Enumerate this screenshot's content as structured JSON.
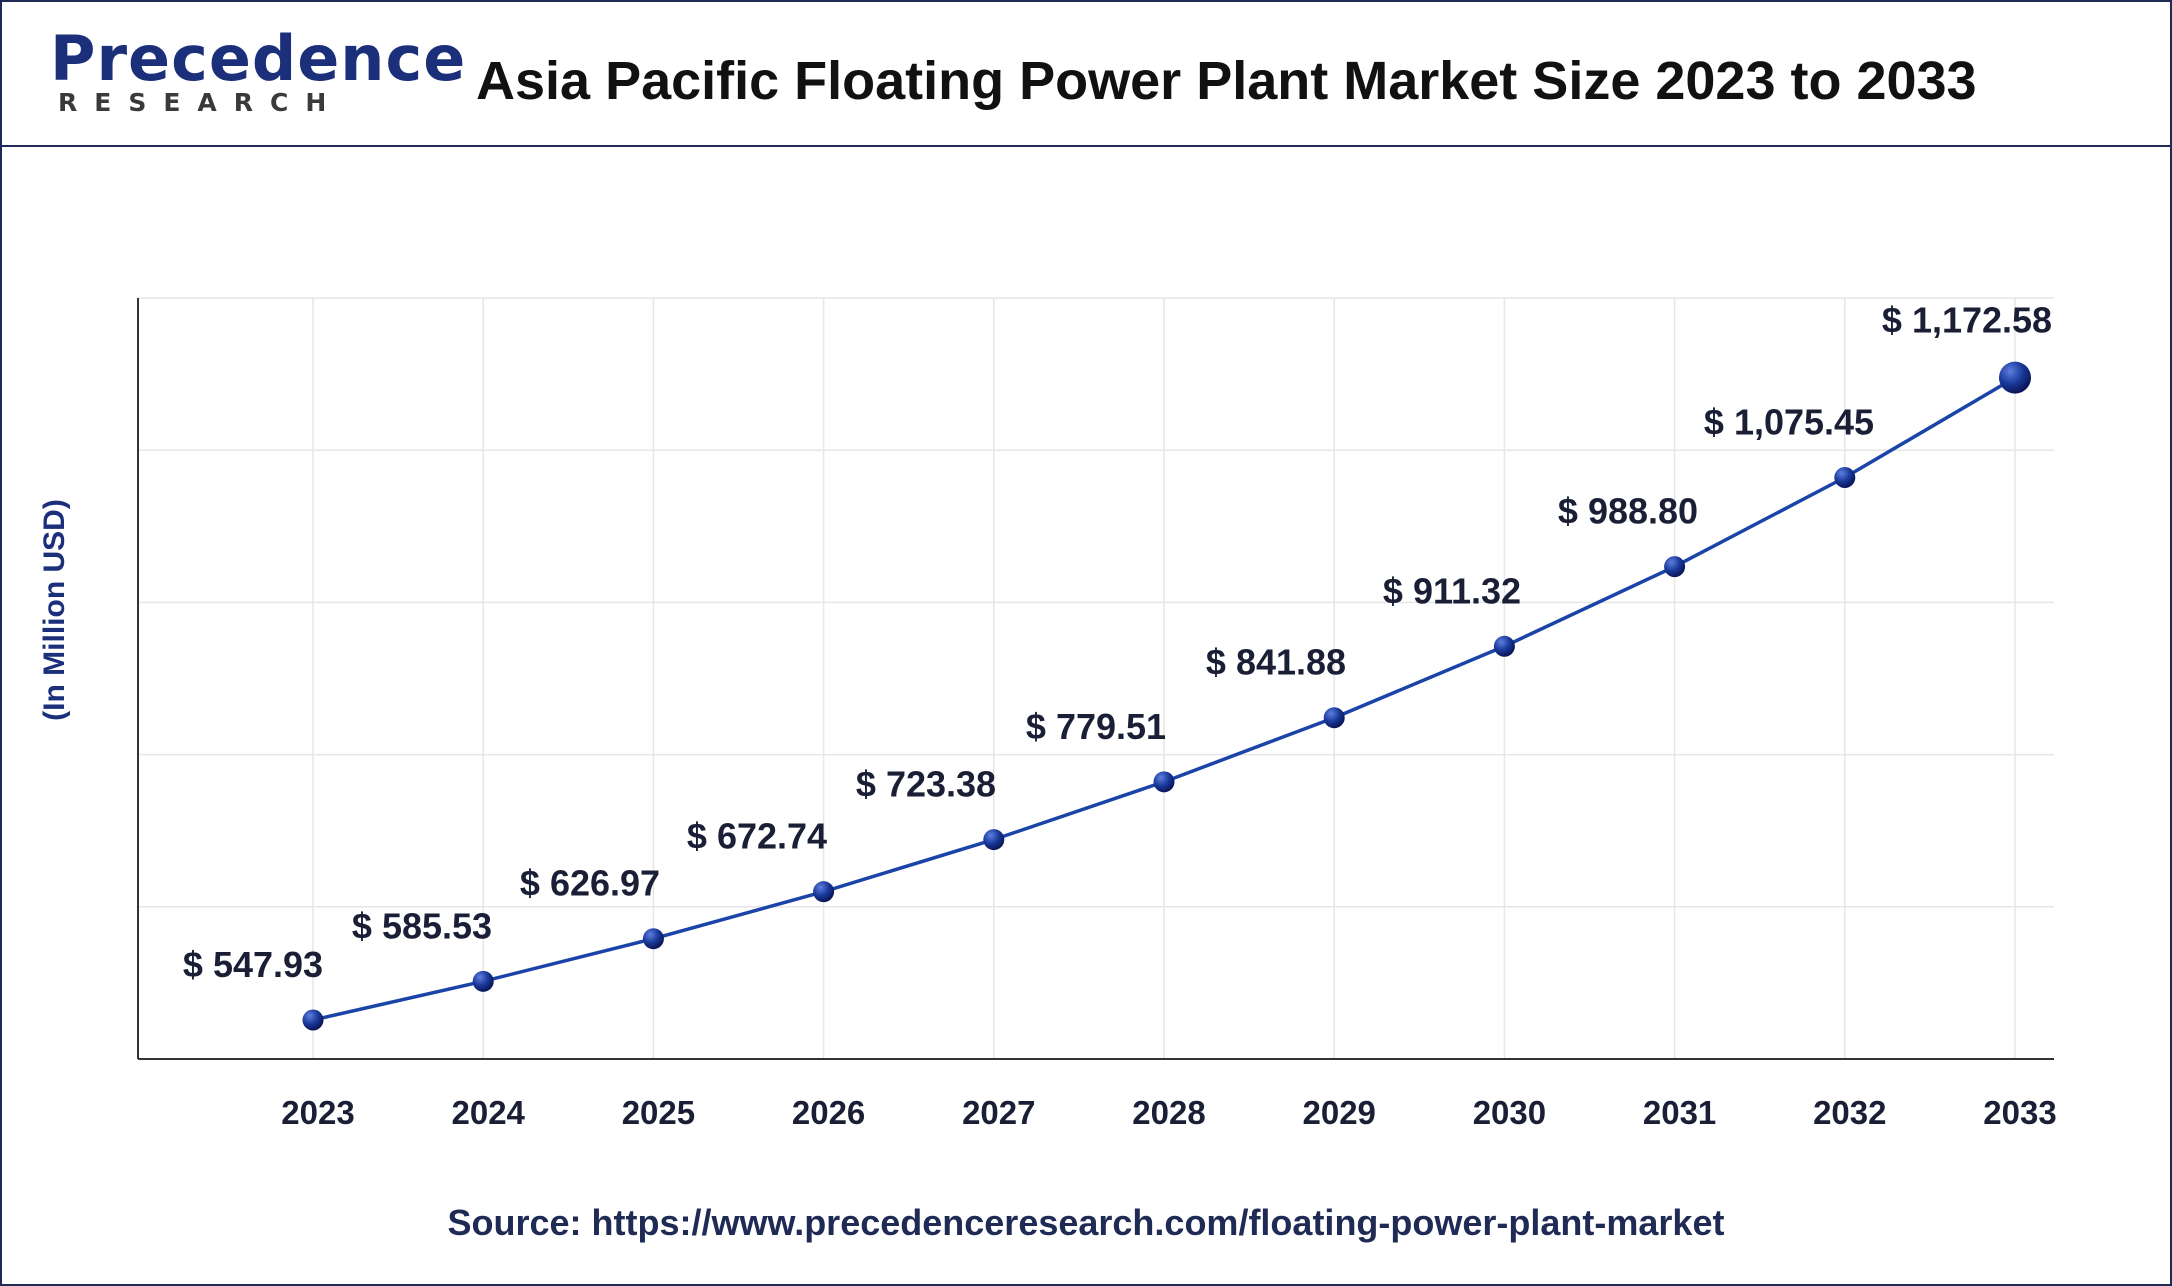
{
  "brand": {
    "name": "Precedence",
    "sub": "RESEARCH"
  },
  "title": "Asia Pacific Floating Power Plant Market Size 2023 to 2033",
  "source": "Source: https://www.precedenceresearch.com/floating-power-plant-market",
  "colors": {
    "line": "#1a44a8",
    "marker": "#10237a",
    "text": "#1a1f36",
    "brand": "#1b2f7a",
    "grid": "#e6e6e6"
  },
  "chart_data": {
    "type": "line",
    "title": "Asia Pacific Floating Power Plant Market Size 2023 to 2033",
    "xlabel": "",
    "ylabel": "(In Million USD)",
    "categories": [
      "2023",
      "2024",
      "2025",
      "2026",
      "2027",
      "2028",
      "2029",
      "2030",
      "2031",
      "2032",
      "2033"
    ],
    "series": [
      {
        "values": [
          547.93,
          585.53,
          626.97,
          672.74,
          723.38,
          779.51,
          841.88,
          911.32,
          988.8,
          1075.45,
          1172.58
        ],
        "labels": [
          "$ 547.93",
          "$ 585.53",
          "$ 626.97",
          "$ 672.74",
          "$ 723.38",
          "$ 779.51",
          "$ 841.88",
          "$ 911.32",
          "$ 988.80",
          "$ 1,075.45",
          "$ 1,172.58"
        ]
      }
    ],
    "ylim": [
      510,
      1250
    ],
    "grid": true,
    "legend": "none"
  }
}
